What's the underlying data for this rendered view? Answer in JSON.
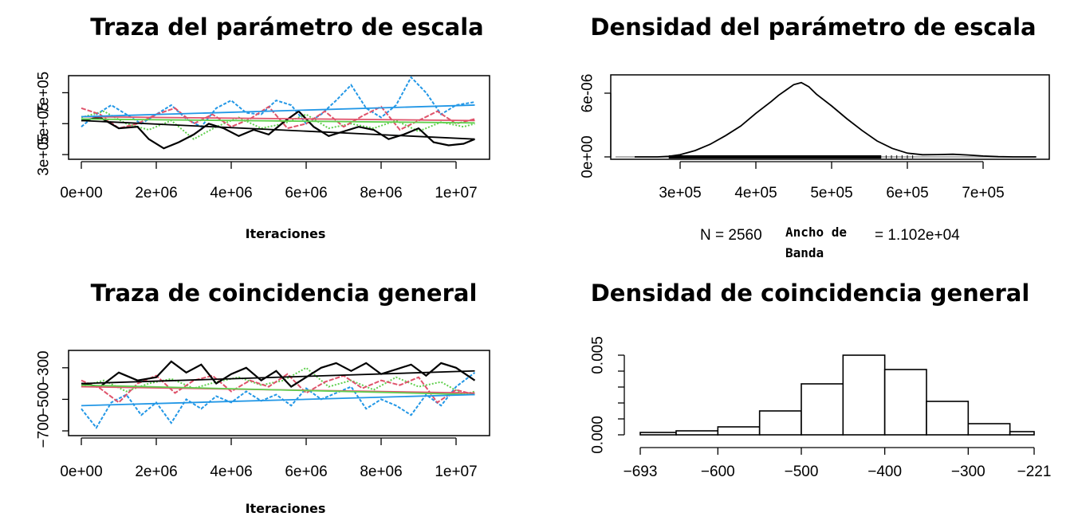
{
  "colors": {
    "black": "#000000",
    "red": "#DF536B",
    "green": "#61D04F",
    "blue": "#2297E6"
  },
  "chart_data": [
    {
      "id": "trace_scale",
      "type": "line",
      "title": "Traza del parámetro de escala",
      "xlabel": "Iteraciones",
      "x_ticks": [
        "0e+00",
        "2e+06",
        "4e+06",
        "6e+06",
        "8e+06",
        "1e+07"
      ],
      "x_tick_values": [
        0,
        2000000,
        4000000,
        6000000,
        8000000,
        10000000
      ],
      "y_ticks": [
        "3e+05",
        "5e+05",
        "7e+05"
      ],
      "y_tick_values": [
        300000,
        500000,
        700000
      ],
      "xlim": [
        0,
        10500000
      ],
      "ylim": [
        280000,
        800000
      ],
      "grid": false,
      "series": [
        {
          "color": "black",
          "x": [
            0,
            500000,
            1000000,
            1500000,
            1800000,
            2200000,
            2600000,
            3000000,
            3400000,
            3800000,
            4200000,
            4600000,
            5000000,
            5400000,
            5800000,
            6200000,
            6600000,
            7000000,
            7400000,
            7800000,
            8200000,
            8600000,
            9000000,
            9400000,
            9800000,
            10200000,
            10500000
          ],
          "y": [
            520000,
            540000,
            470000,
            480000,
            400000,
            340000,
            380000,
            430000,
            500000,
            470000,
            420000,
            460000,
            430000,
            510000,
            580000,
            480000,
            420000,
            450000,
            480000,
            460000,
            400000,
            430000,
            470000,
            380000,
            360000,
            370000,
            400000
          ]
        },
        {
          "color": "red",
          "x": [
            0,
            500000,
            1000000,
            1500000,
            2000000,
            2500000,
            3000000,
            3500000,
            4000000,
            4500000,
            5000000,
            5500000,
            6000000,
            6500000,
            7000000,
            7500000,
            8000000,
            8500000,
            9000000,
            9500000,
            10000000,
            10500000
          ],
          "y": [
            600000,
            560000,
            470000,
            500000,
            560000,
            600000,
            500000,
            560000,
            480000,
            530000,
            610000,
            470000,
            500000,
            580000,
            480000,
            550000,
            610000,
            460000,
            520000,
            580000,
            500000,
            530000
          ]
        },
        {
          "color": "green",
          "x": [
            0,
            600000,
            1200000,
            1800000,
            2400000,
            3000000,
            3600000,
            4200000,
            4800000,
            5400000,
            6000000,
            6600000,
            7200000,
            7800000,
            8400000,
            9000000,
            9600000,
            10200000,
            10500000
          ],
          "y": [
            540000,
            580000,
            500000,
            460000,
            520000,
            400000,
            480000,
            540000,
            470000,
            500000,
            560000,
            470000,
            500000,
            470000,
            520000,
            450000,
            510000,
            480000,
            500000
          ]
        },
        {
          "color": "blue",
          "x": [
            0,
            400000,
            800000,
            1200000,
            1600000,
            2000000,
            2400000,
            2800000,
            3200000,
            3600000,
            4000000,
            4400000,
            4800000,
            5200000,
            5600000,
            6000000,
            6400000,
            6800000,
            7200000,
            7600000,
            8000000,
            8400000,
            8800000,
            9200000,
            9600000,
            10000000,
            10500000
          ],
          "y": [
            480000,
            560000,
            620000,
            560000,
            500000,
            560000,
            620000,
            530000,
            480000,
            600000,
            650000,
            570000,
            560000,
            650000,
            620000,
            500000,
            560000,
            650000,
            750000,
            600000,
            540000,
            620000,
            800000,
            700000,
            560000,
            620000,
            640000
          ]
        }
      ],
      "trends": [
        {
          "color": "black",
          "y0": 520000,
          "y1": 400000
        },
        {
          "color": "red",
          "y0": 545000,
          "y1": 520000
        },
        {
          "color": "green",
          "y0": 530000,
          "y1": 505000
        },
        {
          "color": "blue",
          "y0": 545000,
          "y1": 620000
        }
      ]
    },
    {
      "id": "density_scale",
      "type": "line",
      "title": "Densidad del parámetro de escala",
      "x_ticks": [
        "3e+05",
        "4e+05",
        "5e+05",
        "6e+05",
        "7e+05"
      ],
      "x_tick_values": [
        300000,
        400000,
        500000,
        600000,
        700000
      ],
      "y_ticks": [
        "0e+00",
        "6e-06"
      ],
      "y_tick_values": [
        0,
        6e-06
      ],
      "xlim": [
        240000,
        770000
      ],
      "ylim": [
        0,
        7.2e-06
      ],
      "grid": false,
      "x": [
        240000,
        270000,
        285000,
        300000,
        320000,
        340000,
        360000,
        380000,
        400000,
        420000,
        430000,
        440000,
        450000,
        460000,
        470000,
        480000,
        500000,
        520000,
        540000,
        560000,
        580000,
        600000,
        620000,
        640000,
        660000,
        680000,
        700000,
        720000,
        740000,
        770000
      ],
      "y": [
        0,
        0,
        5e-08,
        2e-07,
        6e-07,
        1.2e-06,
        2e-06,
        2.9e-06,
        4.1e-06,
        5.2e-06,
        5.8e-06,
        6.3e-06,
        6.8e-06,
        7e-06,
        6.6e-06,
        5.9e-06,
        4.8e-06,
        3.6e-06,
        2.5e-06,
        1.5e-06,
        8e-07,
        3.5e-07,
        2e-07,
        2.2e-07,
        2.5e-07,
        1.8e-07,
        8e-08,
        2e-08,
        0,
        0
      ],
      "rug_range": [
        285000,
        565000
      ],
      "n_label": "N = 2560",
      "bw_label_lines": [
        "Ancho de",
        "Banda"
      ],
      "bw_value": "= 1.102e+04"
    },
    {
      "id": "trace_match",
      "type": "line",
      "title": "Traza de coincidencia general",
      "xlabel": "Iteraciones",
      "x_ticks": [
        "0e+00",
        "2e+06",
        "4e+06",
        "6e+06",
        "8e+06",
        "1e+07"
      ],
      "x_tick_values": [
        0,
        2000000,
        4000000,
        6000000,
        8000000,
        10000000
      ],
      "y_ticks": [
        "−700",
        "−500",
        "−300"
      ],
      "y_tick_values": [
        -700,
        -500,
        -300
      ],
      "xlim": [
        0,
        10500000
      ],
      "ylim": [
        -720,
        -200
      ],
      "grid": false,
      "series": [
        {
          "color": "black",
          "x": [
            0,
            500000,
            1000000,
            1500000,
            2000000,
            2400000,
            2800000,
            3200000,
            3600000,
            4000000,
            4400000,
            4800000,
            5200000,
            5600000,
            6000000,
            6400000,
            6800000,
            7200000,
            7600000,
            8000000,
            8400000,
            8800000,
            9200000,
            9600000,
            10000000,
            10500000
          ],
          "y": [
            -400,
            -420,
            -330,
            -380,
            -360,
            -260,
            -330,
            -280,
            -400,
            -340,
            -300,
            -380,
            -320,
            -420,
            -360,
            -300,
            -270,
            -320,
            -270,
            -340,
            -310,
            -280,
            -350,
            -270,
            -300,
            -380
          ]
        },
        {
          "color": "red",
          "x": [
            0,
            500000,
            1000000,
            1500000,
            2000000,
            2500000,
            3000000,
            3500000,
            4000000,
            4500000,
            5000000,
            5500000,
            6000000,
            6500000,
            7000000,
            7500000,
            8000000,
            8500000,
            9000000,
            9500000,
            10000000,
            10500000
          ],
          "y": [
            -380,
            -430,
            -520,
            -400,
            -350,
            -460,
            -380,
            -350,
            -450,
            -380,
            -420,
            -340,
            -460,
            -390,
            -350,
            -430,
            -380,
            -410,
            -360,
            -520,
            -440,
            -470
          ]
        },
        {
          "color": "green",
          "x": [
            0,
            600000,
            1200000,
            1800000,
            2400000,
            3000000,
            3600000,
            4200000,
            4800000,
            5400000,
            6000000,
            6600000,
            7200000,
            7800000,
            8400000,
            9000000,
            9600000,
            10200000,
            10500000
          ],
          "y": [
            -420,
            -380,
            -450,
            -400,
            -370,
            -430,
            -390,
            -360,
            -410,
            -380,
            -300,
            -420,
            -380,
            -440,
            -360,
            -420,
            -390,
            -470,
            -450
          ]
        },
        {
          "color": "blue",
          "x": [
            0,
            400000,
            800000,
            1200000,
            1600000,
            2000000,
            2400000,
            2800000,
            3200000,
            3600000,
            4000000,
            4400000,
            4800000,
            5200000,
            5600000,
            6000000,
            6400000,
            6800000,
            7200000,
            7600000,
            8000000,
            8400000,
            8800000,
            9200000,
            9600000,
            10000000,
            10500000
          ],
          "y": [
            -560,
            -680,
            -520,
            -470,
            -600,
            -520,
            -650,
            -500,
            -560,
            -480,
            -520,
            -450,
            -510,
            -470,
            -540,
            -430,
            -500,
            -460,
            -420,
            -560,
            -500,
            -540,
            -600,
            -470,
            -540,
            -420,
            -330
          ]
        }
      ],
      "trends": [
        {
          "color": "black",
          "y0": -400,
          "y1": -320
        },
        {
          "color": "red",
          "y0": -420,
          "y1": -460
        },
        {
          "color": "green",
          "y0": -410,
          "y1": -470
        },
        {
          "color": "blue",
          "y0": -540,
          "y1": -470
        }
      ]
    },
    {
      "id": "density_match",
      "type": "bar",
      "title": "Densidad de coincidencia general",
      "x_ticks": [
        "−693",
        "−600",
        "−500",
        "−400",
        "−300",
        "−221"
      ],
      "x_tick_values": [
        -693,
        -600,
        -500,
        -400,
        -300,
        -221
      ],
      "y_ticks": [
        "0.000",
        "0.005"
      ],
      "y_tick_values": [
        0,
        0.005
      ],
      "xlim": [
        -693,
        -221
      ],
      "ylim": [
        0,
        0.005
      ],
      "grid": false,
      "bins": [
        {
          "start": -693,
          "end": -650,
          "value": 0.00015
        },
        {
          "start": -650,
          "end": -600,
          "value": 0.00025
        },
        {
          "start": -600,
          "end": -550,
          "value": 0.0005
        },
        {
          "start": -550,
          "end": -500,
          "value": 0.0015
        },
        {
          "start": -500,
          "end": -450,
          "value": 0.0032
        },
        {
          "start": -450,
          "end": -400,
          "value": 0.005
        },
        {
          "start": -400,
          "end": -350,
          "value": 0.0041
        },
        {
          "start": -350,
          "end": -300,
          "value": 0.0021
        },
        {
          "start": -300,
          "end": -250,
          "value": 0.0007
        },
        {
          "start": -250,
          "end": -221,
          "value": 0.0002
        }
      ]
    }
  ]
}
